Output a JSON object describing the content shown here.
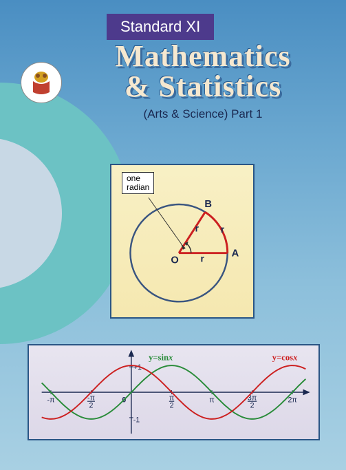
{
  "banner": "Standard XI",
  "title_line1": "Mathematics",
  "title_line2": "& Statistics",
  "subtitle": "(Arts & Science)  Part 1",
  "radian": {
    "label": "one\nradian",
    "label_line1": "one",
    "label_line2": "radian",
    "point_B": "B",
    "point_A": "A",
    "point_O": "O",
    "radius_label": "r",
    "circle_color": "#3a5580",
    "sector_color": "#cc2020",
    "bg_gradient_top": "#f8f0c5",
    "bg_gradient_bottom": "#f5e8b0",
    "border_color": "#2a5585"
  },
  "trig": {
    "sin_label": "y=sin",
    "sin_label_x": "x",
    "cos_label": "y=cos",
    "cos_label_x": "x",
    "sin_color": "#2a8c3a",
    "cos_color": "#cc2020",
    "axis_color": "#1a2850",
    "xticks": [
      {
        "pos": -3.1416,
        "label": "-π"
      },
      {
        "pos": -1.5708,
        "label": "-π",
        "frac": "2"
      },
      {
        "pos": 0,
        "label": "0"
      },
      {
        "pos": 1.5708,
        "label": "π",
        "frac": "2"
      },
      {
        "pos": 3.1416,
        "label": "π"
      },
      {
        "pos": 4.7124,
        "label": "3π",
        "frac": "2"
      },
      {
        "pos": 6.2832,
        "label": "2π"
      }
    ],
    "yticks": [
      "+1",
      "-1"
    ],
    "xlim": [
      -3.5,
      6.8
    ],
    "ylim": [
      -1.5,
      1.5
    ],
    "bg_gradient_top": "#e8e5f0",
    "border_color": "#2a5585"
  }
}
